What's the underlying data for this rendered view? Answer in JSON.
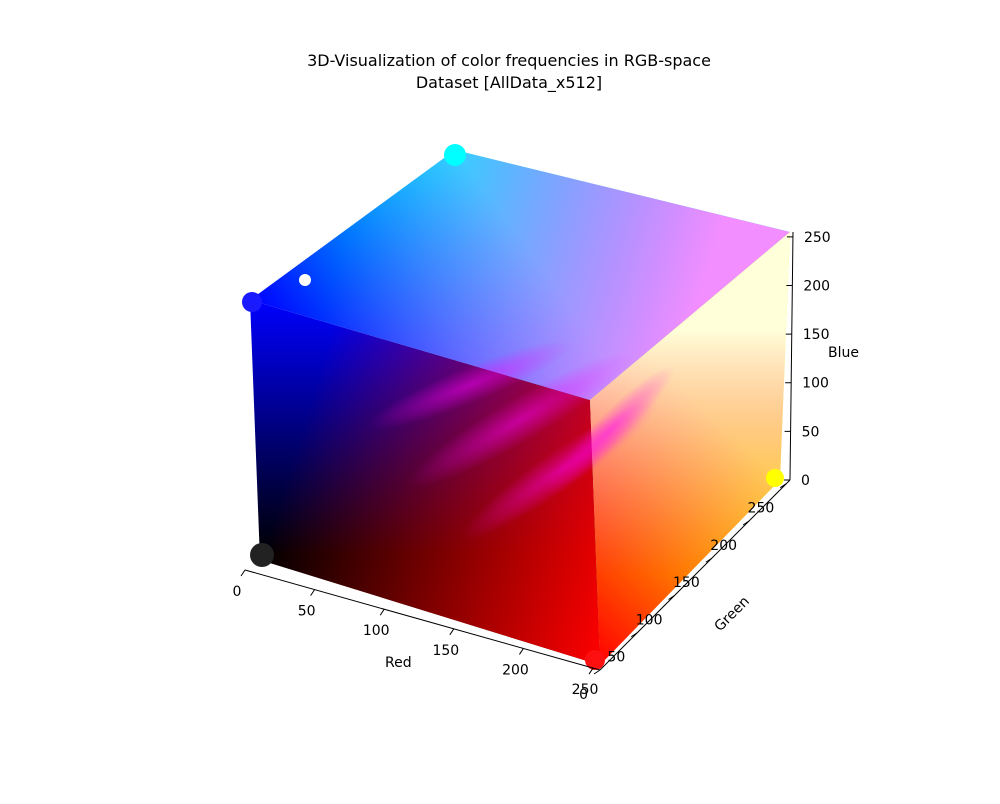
{
  "chart_data": {
    "type": "scatter",
    "projection": "3d",
    "title": "3D-Visualization of color frequencies in RGB-space",
    "subtitle": "Dataset [AllData_x512]",
    "xlabel": "Red",
    "ylabel": "Green",
    "zlabel": "Blue",
    "xlim": [
      0,
      255
    ],
    "ylim": [
      0,
      255
    ],
    "zlim": [
      0,
      255
    ],
    "x_ticks": [
      0,
      50,
      100,
      150,
      200,
      250
    ],
    "y_ticks": [
      0,
      50,
      100,
      150,
      200,
      250
    ],
    "z_ticks": [
      0,
      50,
      100,
      150,
      200,
      250
    ],
    "grid": false,
    "legend": "none",
    "marker_color": "rgb of each point",
    "corner_colors": {
      "black": "#000000",
      "red": "#ff0000",
      "blue": "#0000ff",
      "magenta": "#ff00ff",
      "cyan": "#00ffff",
      "white": "#ffffff",
      "yellow": "#ffff00"
    }
  }
}
